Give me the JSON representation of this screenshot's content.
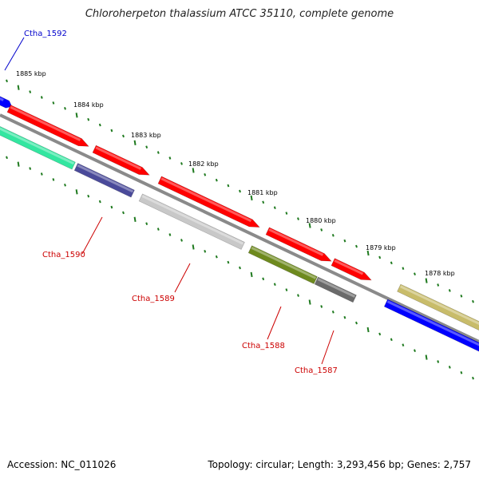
{
  "title": "Chloroherpeton thalassium ATCC 35110, complete genome",
  "footer": {
    "accession": "Accession: NC_011026",
    "summary": "Topology: circular; Length: 3,293,456 bp; Genes: 2,757"
  },
  "kbp_labels": [
    "1885 kbp",
    "1884 kbp",
    "1883 kbp",
    "1882 kbp",
    "1881 kbp",
    "1880 kbp",
    "1879 kbp",
    "1878 kbp"
  ],
  "gene_labels": [
    {
      "text": "Ctha_1592",
      "color": "#0000cc"
    },
    {
      "text": "Ctha_1590",
      "color": "#cc0000"
    },
    {
      "text": "Ctha_1589",
      "color": "#cc0000"
    },
    {
      "text": "Ctha_1588",
      "color": "#cc0000"
    },
    {
      "text": "Ctha_1587",
      "color": "#cc0000"
    }
  ],
  "colors": {
    "backbone": "#8a8a8a",
    "tick": "#1f7a1f",
    "cds_forward": "#ff0000",
    "cds_reverse": "#0000ff",
    "label_line_forward": "#0000cc",
    "label_line_reverse": "#cc0000"
  },
  "features": [
    {
      "name": "cds-blue-left",
      "color": "#0000ff"
    },
    {
      "name": "cds-red-1",
      "color": "#ff0000"
    },
    {
      "name": "cds-green-aqua",
      "color": "#33e6a0"
    },
    {
      "name": "cds-red-2",
      "color": "#ff0000"
    },
    {
      "name": "cds-indigo",
      "color": "#4a4a9a"
    },
    {
      "name": "cds-red-3",
      "color": "#ff0000"
    },
    {
      "name": "cds-lightgray",
      "color": "#c8c8c8"
    },
    {
      "name": "cds-red-4",
      "color": "#ff0000"
    },
    {
      "name": "cds-olive",
      "color": "#6e8a1e"
    },
    {
      "name": "cds-red-5",
      "color": "#ff0000"
    },
    {
      "name": "cds-darkgray",
      "color": "#6a6a6a"
    },
    {
      "name": "cds-khaki",
      "color": "#c8bc6a"
    },
    {
      "name": "cds-blue-right",
      "color": "#0000ff"
    }
  ]
}
